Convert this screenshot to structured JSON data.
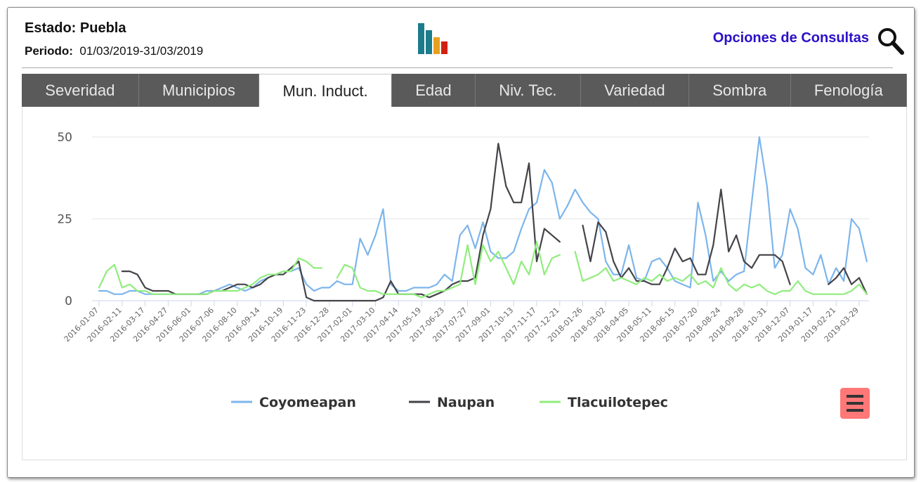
{
  "header": {
    "estado_label": "Estado:",
    "estado": "Puebla",
    "periodo_label": "Periodo:",
    "periodo": "01/03/2019-31/03/2019",
    "options": "Opciones de Consultas"
  },
  "tabs": [
    "Severidad",
    "Municipios",
    "Mun. Induct.",
    "Edad",
    "Niv. Tec.",
    "Variedad",
    "Sombra",
    "Fenología"
  ],
  "active_tab": 2,
  "chart_data": {
    "type": "line",
    "categories": [
      "2016-01-07",
      null,
      null,
      "2016-02-11",
      null,
      null,
      "2016-03-17",
      null,
      null,
      "2016-04-27",
      null,
      null,
      "2016-06-01",
      null,
      null,
      "2016-07-06",
      null,
      null,
      "2016-08-10",
      null,
      null,
      "2016-09-14",
      null,
      null,
      "2016-10-19",
      null,
      null,
      "2016-11-23",
      null,
      null,
      "2016-12-28",
      null,
      null,
      "2017-02-01",
      null,
      null,
      "2017-03-10",
      null,
      null,
      "2017-04-14",
      null,
      null,
      "2017-05-19",
      null,
      null,
      "2017-06-23",
      null,
      null,
      "2017-07-27",
      null,
      null,
      "2017-09-01",
      null,
      null,
      "2017-10-13",
      null,
      null,
      "2017-11-17",
      null,
      null,
      "2017-12-21",
      null,
      null,
      "2018-01-26",
      null,
      null,
      "2018-03-02",
      null,
      null,
      "2018-04-05",
      null,
      null,
      "2018-05-11",
      null,
      null,
      "2018-06-15",
      null,
      null,
      "2018-07-20",
      null,
      null,
      "2018-08-24",
      null,
      null,
      "2018-09-28",
      null,
      null,
      "2018-10-31",
      null,
      null,
      "2018-12-07",
      null,
      null,
      "2019-01-17",
      null,
      null,
      "2019-02-21",
      null,
      null,
      "2019-03-29",
      null
    ],
    "series": [
      {
        "name": "Coyomeapan",
        "color": "#7cb5ec",
        "values": [
          3,
          3,
          2,
          2,
          3,
          3,
          2,
          2,
          2,
          2,
          2,
          2,
          2,
          2,
          3,
          3,
          4,
          5,
          4,
          3,
          4,
          6,
          7,
          8,
          9,
          9,
          10,
          5,
          3,
          4,
          4,
          6,
          5,
          5,
          19,
          14,
          20,
          28,
          5,
          3,
          3,
          4,
          4,
          4,
          5,
          8,
          6,
          20,
          23,
          16,
          24,
          15,
          13,
          13,
          15,
          22,
          28,
          30,
          40,
          36,
          25,
          29,
          34,
          30,
          27,
          25,
          12,
          8,
          8,
          17,
          7,
          6,
          12,
          13,
          10,
          6,
          5,
          4,
          30,
          20,
          6,
          9,
          6,
          8,
          9,
          30,
          50,
          35,
          10,
          14,
          28,
          22,
          10,
          8,
          14,
          5,
          10,
          6,
          25,
          22,
          12
        ]
      },
      {
        "name": "Naupan",
        "color": "#434348",
        "values": [
          null,
          null,
          null,
          9,
          9,
          8,
          4,
          3,
          3,
          3,
          2,
          2,
          2,
          2,
          2,
          3,
          3,
          4,
          5,
          5,
          4,
          5,
          7,
          8,
          8,
          10,
          12,
          1,
          0,
          0,
          0,
          0,
          0,
          0,
          0,
          0,
          0,
          1,
          6,
          2,
          2,
          2,
          2,
          1,
          2,
          3,
          5,
          6,
          6,
          7,
          20,
          28,
          48,
          35,
          30,
          30,
          42,
          12,
          22,
          20,
          18,
          null,
          null,
          23,
          12,
          24,
          21,
          12,
          7,
          10,
          6,
          6,
          5,
          5,
          10,
          16,
          12,
          13,
          8,
          8,
          17,
          34,
          15,
          20,
          12,
          10,
          14,
          14,
          14,
          12,
          5,
          null,
          null,
          null,
          null,
          5,
          7,
          10,
          5,
          7,
          2
        ]
      },
      {
        "name": "Tlacuilotepec",
        "color": "#90ed7d",
        "values": [
          4,
          9,
          11,
          4,
          5,
          3,
          3,
          2,
          2,
          2,
          2,
          2,
          2,
          2,
          2,
          3,
          3,
          3,
          3,
          4,
          5,
          7,
          8,
          8,
          9,
          9,
          13,
          12,
          10,
          10,
          null,
          7,
          11,
          10,
          4,
          3,
          3,
          2,
          2,
          2,
          2,
          2,
          1,
          2,
          3,
          3,
          4,
          5,
          17,
          5,
          17,
          12,
          15,
          10,
          5,
          12,
          8,
          18,
          8,
          13,
          14,
          null,
          15,
          6,
          7,
          8,
          10,
          6,
          7,
          6,
          5,
          7,
          6,
          8,
          6,
          7,
          6,
          8,
          5,
          6,
          4,
          10,
          5,
          3,
          5,
          4,
          5,
          3,
          2,
          3,
          3,
          6,
          3,
          2,
          2,
          2,
          2,
          2,
          3,
          5,
          2
        ]
      }
    ],
    "ylim": [
      0,
      50
    ],
    "yticks": [
      0,
      25,
      50
    ],
    "grid": true
  }
}
